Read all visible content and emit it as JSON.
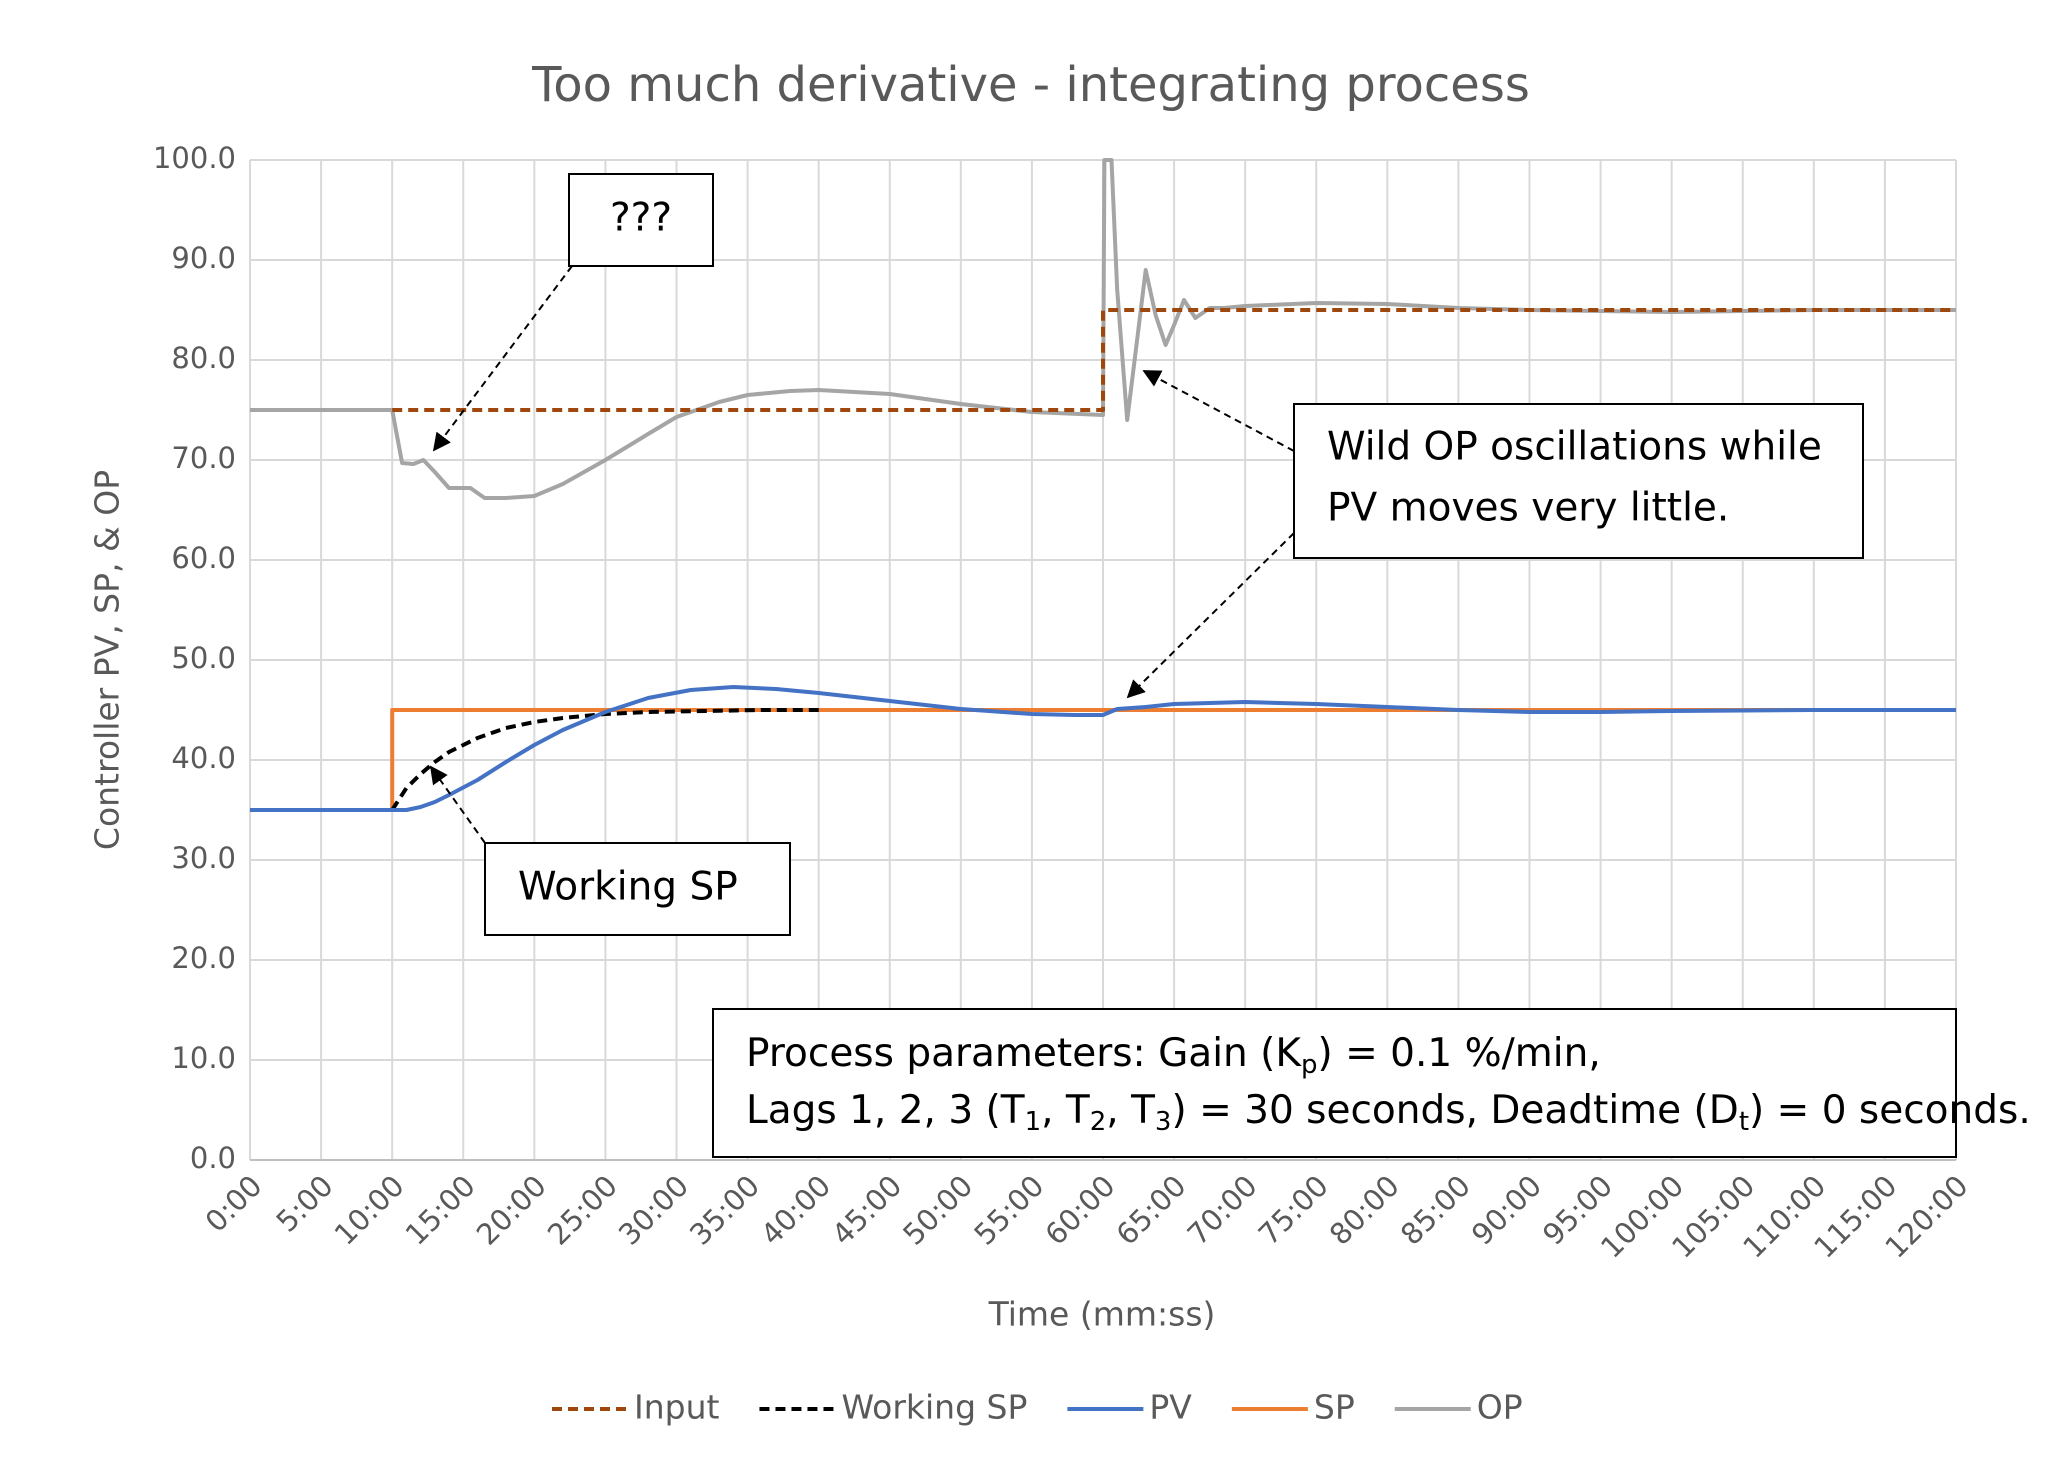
{
  "chart_data": {
    "type": "line",
    "title": "Too much derivative - integrating process",
    "y_label": "Controller PV, SP, & OP",
    "x_label": "Time (mm:ss)",
    "xlim": [
      0,
      120
    ],
    "ylim": [
      0,
      100
    ],
    "grid": true,
    "legend": "bottom",
    "xticks": [
      {
        "value": 0,
        "label": "0:00"
      },
      {
        "value": 5,
        "label": "5:00"
      },
      {
        "value": 10,
        "label": "10:00"
      },
      {
        "value": 15,
        "label": "15:00"
      },
      {
        "value": 20,
        "label": "20:00"
      },
      {
        "value": 25,
        "label": "25:00"
      },
      {
        "value": 30,
        "label": "30:00"
      },
      {
        "value": 35,
        "label": "35:00"
      },
      {
        "value": 40,
        "label": "40:00"
      },
      {
        "value": 45,
        "label": "45:00"
      },
      {
        "value": 50,
        "label": "50:00"
      },
      {
        "value": 55,
        "label": "55:00"
      },
      {
        "value": 60,
        "label": "60:00"
      },
      {
        "value": 65,
        "label": "65:00"
      },
      {
        "value": 70,
        "label": "70:00"
      },
      {
        "value": 75,
        "label": "75:00"
      },
      {
        "value": 80,
        "label": "80:00"
      },
      {
        "value": 85,
        "label": "85:00"
      },
      {
        "value": 90,
        "label": "90:00"
      },
      {
        "value": 95,
        "label": "95:00"
      },
      {
        "value": 100,
        "label": "100:00"
      },
      {
        "value": 105,
        "label": "105:00"
      },
      {
        "value": 110,
        "label": "110:00"
      },
      {
        "value": 115,
        "label": "115:00"
      },
      {
        "value": 120,
        "label": "120:00"
      }
    ],
    "yticks": [
      {
        "value": 0,
        "label": "0.0"
      },
      {
        "value": 10,
        "label": "10.0"
      },
      {
        "value": 20,
        "label": "20.0"
      },
      {
        "value": 30,
        "label": "30.0"
      },
      {
        "value": 40,
        "label": "40.0"
      },
      {
        "value": 50,
        "label": "50.0"
      },
      {
        "value": 60,
        "label": "60.0"
      },
      {
        "value": 70,
        "label": "70.0"
      },
      {
        "value": 80,
        "label": "80.0"
      },
      {
        "value": 90,
        "label": "90.0"
      },
      {
        "value": 100,
        "label": "100.0"
      }
    ],
    "series": [
      {
        "name": "Input",
        "color": "#9e480e",
        "dash": true,
        "x": [
          10,
          60,
          60,
          120
        ],
        "values": [
          75,
          75,
          85,
          85
        ]
      },
      {
        "name": "Working SP",
        "color": "#000000",
        "dash": true,
        "x": [
          10,
          11,
          12,
          13,
          14,
          16,
          18,
          20,
          22,
          25,
          28,
          32,
          36,
          40
        ],
        "values": [
          35,
          37.2,
          38.6,
          39.8,
          40.8,
          42.2,
          43.2,
          43.8,
          44.2,
          44.6,
          44.8,
          44.9,
          45,
          45
        ]
      },
      {
        "name": "PV",
        "color": "#4472c4",
        "dash": false,
        "x": [
          0,
          10,
          11,
          12,
          13,
          14,
          16,
          18,
          20,
          22,
          25,
          28,
          31,
          34,
          37,
          40,
          45,
          50,
          55,
          58,
          60,
          61,
          63,
          65,
          70,
          75,
          80,
          85,
          90,
          95,
          100,
          110,
          120
        ],
        "values": [
          35,
          35,
          35,
          35.3,
          35.8,
          36.5,
          38,
          39.8,
          41.5,
          43,
          44.8,
          46.2,
          47,
          47.3,
          47.1,
          46.7,
          45.9,
          45.1,
          44.6,
          44.5,
          44.5,
          45.1,
          45.3,
          45.6,
          45.8,
          45.6,
          45.3,
          45,
          44.8,
          44.8,
          44.9,
          45,
          45
        ]
      },
      {
        "name": "SP",
        "color": "#ed7d31",
        "dash": false,
        "x": [
          0,
          10,
          10,
          120
        ],
        "values": [
          35,
          35,
          45,
          45
        ]
      },
      {
        "name": "OP",
        "color": "#a5a5a5",
        "dash": false,
        "x": [
          0,
          10,
          10.7,
          11.5,
          12.2,
          13,
          14,
          15.5,
          16.5,
          18,
          20,
          22,
          25,
          28,
          30,
          33,
          35,
          38,
          40,
          45,
          50,
          55,
          60,
          60.1,
          60.6,
          61,
          61.7,
          62.4,
          63,
          63.7,
          64.4,
          65,
          65.7,
          66.5,
          67.5,
          68.5,
          70,
          75,
          80,
          85,
          90,
          100,
          110,
          120
        ],
        "values": [
          75,
          75,
          69.7,
          69.6,
          70,
          68.8,
          67.2,
          67.2,
          66.2,
          66.2,
          66.4,
          67.6,
          70,
          72.6,
          74.3,
          75.8,
          76.5,
          76.9,
          77,
          76.6,
          75.6,
          74.8,
          74.5,
          100,
          100,
          87,
          74,
          82,
          89,
          84.5,
          81.5,
          83.5,
          86,
          84.2,
          85.2,
          85.2,
          85.4,
          85.7,
          85.6,
          85.2,
          85,
          84.8,
          85,
          85
        ]
      }
    ],
    "annotations": {
      "question": "???",
      "working_sp": "Working SP",
      "wild": [
        "Wild OP oscillations while",
        "PV moves very little."
      ],
      "params": [
        [
          "Process parameters:  Gain (K",
          "p",
          ") = 0.1 %/min,"
        ],
        [
          "Lags 1, 2, 3 (T",
          "1",
          ", T",
          "2",
          ", T",
          "3",
          ") = 30 seconds, Deadtime (D",
          "t",
          ") = 0 seconds."
        ]
      ]
    }
  }
}
